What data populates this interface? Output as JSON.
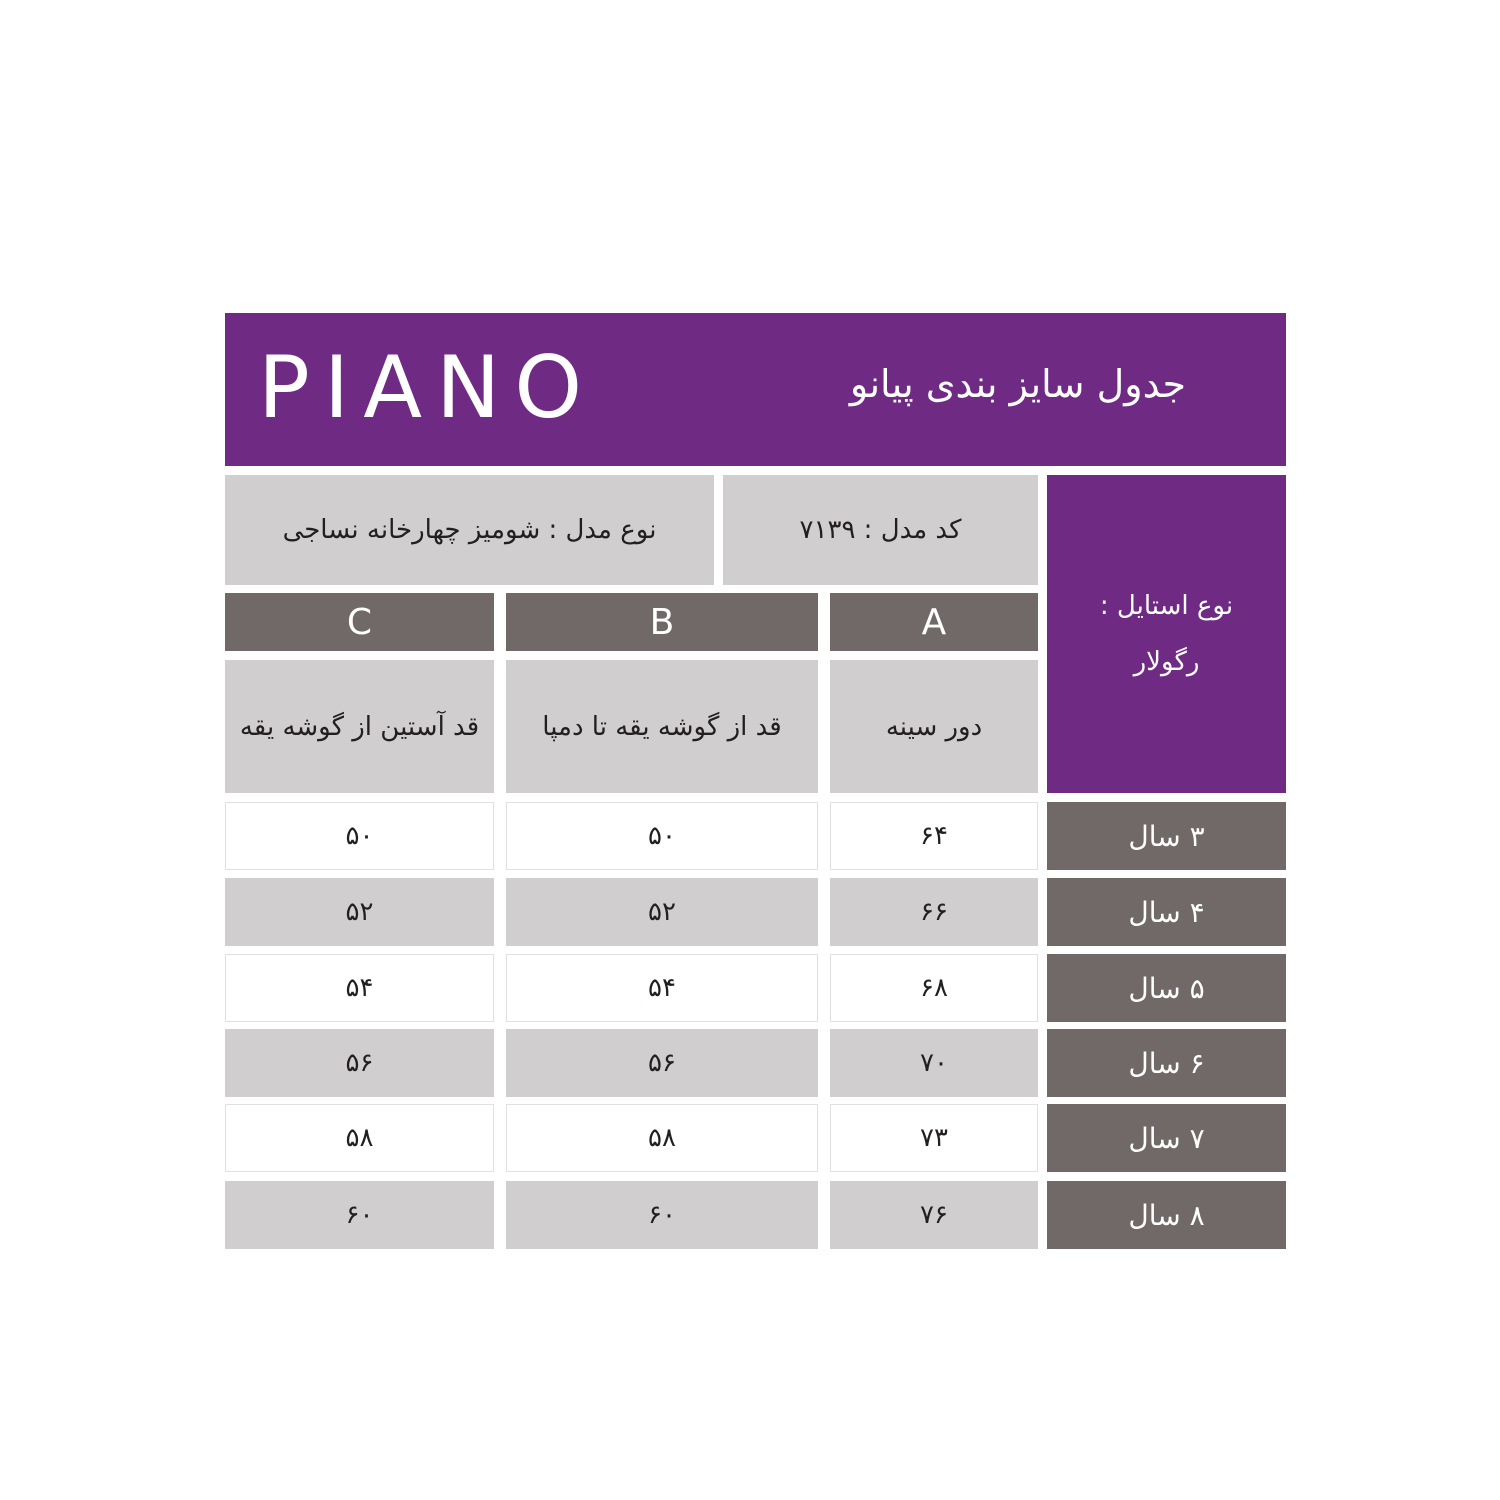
{
  "header": {
    "logo": "PIANO",
    "title": "جدول سایز بندی پیانو"
  },
  "info": {
    "model_type": "نوع مدل : شومیز چهارخانه نساجی",
    "model_code": "کد مدل : ۷۱۳۹",
    "style_label": "نوع استایل :",
    "style_value": "رگولار"
  },
  "columns": [
    {
      "letter": "A",
      "desc": "دور سینه"
    },
    {
      "letter": "B",
      "desc": "قد از گوشه یقه تا دمپا"
    },
    {
      "letter": "C",
      "desc": "قد آستین از گوشه یقه"
    }
  ],
  "rows": [
    {
      "age": "۳ سال",
      "a": "۶۴",
      "b": "۵۰",
      "c": "۵۰"
    },
    {
      "age": "۴ سال",
      "a": "۶۶",
      "b": "۵۲",
      "c": "۵۲"
    },
    {
      "age": "۵ سال",
      "a": "۶۸",
      "b": "۵۴",
      "c": "۵۴"
    },
    {
      "age": "۶ سال",
      "a": "۷۰",
      "b": "۵۶",
      "c": "۵۶"
    },
    {
      "age": "۷ سال",
      "a": "۷۳",
      "b": "۵۸",
      "c": "۵۸"
    },
    {
      "age": "۸ سال",
      "a": "۷۶",
      "b": "۶۰",
      "c": "۶۰"
    }
  ],
  "colors": {
    "purple": "#6f2a84",
    "dark_gray": "#716868",
    "light_gray": "#d0cecf"
  }
}
